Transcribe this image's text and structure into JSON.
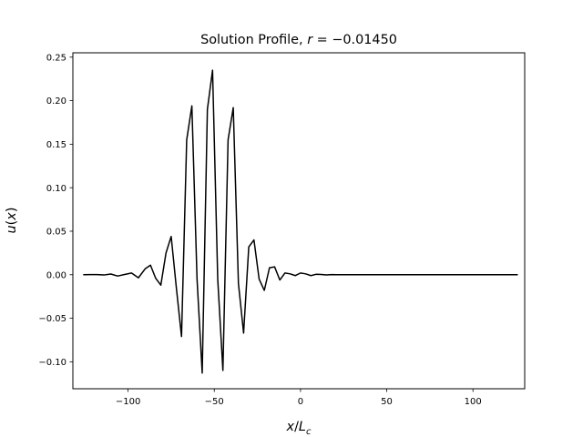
{
  "chart_data": {
    "type": "line",
    "title": "Solution Profile, r = −0.01450",
    "title_parts": {
      "prefix": "Solution Profile, ",
      "var": "r",
      "rest": " = −0.01450"
    },
    "xlabel_parts": {
      "a": "x",
      "b": "/",
      "c": "L",
      "sub": "c"
    },
    "ylabel_parts": {
      "a": "u",
      "b": "(",
      "c": "x",
      "d": ")"
    },
    "xlim": [
      -132,
      130
    ],
    "ylim": [
      -0.131,
      0.255
    ],
    "xticks": [
      {
        "value": -100,
        "label": "−100"
      },
      {
        "value": -50,
        "label": "−50"
      },
      {
        "value": 0,
        "label": "0"
      },
      {
        "value": 50,
        "label": "50"
      },
      {
        "value": 100,
        "label": "100"
      }
    ],
    "yticks": [
      {
        "value": -0.1,
        "label": "−0.10"
      },
      {
        "value": -0.05,
        "label": "−0.05"
      },
      {
        "value": 0.0,
        "label": "0.00"
      },
      {
        "value": 0.05,
        "label": "0.05"
      },
      {
        "value": 0.1,
        "label": "0.10"
      },
      {
        "value": 0.15,
        "label": "0.15"
      },
      {
        "value": 0.2,
        "label": "0.20"
      },
      {
        "value": 0.25,
        "label": "0.25"
      }
    ],
    "grid": false,
    "line_color": "#000000",
    "series": [
      {
        "x": [
          -126,
          -122,
          -118,
          -114,
          -110,
          -106,
          -102,
          -98,
          -94,
          -90,
          -87,
          -84,
          -81,
          -78,
          -75,
          -72,
          -69,
          -66,
          -63,
          -60,
          -57,
          -54,
          -51,
          -48,
          -45,
          -42,
          -39,
          -36,
          -33,
          -30,
          -27,
          -24,
          -21,
          -18,
          -15,
          -12,
          -9,
          -6,
          -3,
          0,
          3,
          6,
          9,
          12,
          15,
          18,
          21,
          24,
          27,
          30,
          35,
          40,
          50,
          60,
          70,
          80,
          90,
          100,
          110,
          120,
          126
        ],
        "y": [
          0.0,
          0.0002,
          0.0001,
          -0.0003,
          0.0008,
          -0.0015,
          0.0003,
          0.002,
          -0.0035,
          0.007,
          0.011,
          -0.004,
          -0.012,
          0.025,
          0.044,
          -0.015,
          -0.071,
          0.155,
          0.194,
          -0.005,
          -0.113,
          0.19,
          0.235,
          -0.005,
          -0.11,
          0.155,
          0.192,
          -0.01,
          -0.067,
          0.032,
          0.04,
          -0.005,
          -0.018,
          0.008,
          0.009,
          -0.006,
          0.002,
          0.001,
          -0.001,
          0.002,
          0.001,
          -0.001,
          0.0005,
          0.0003,
          -0.0002,
          0.0001,
          0.0,
          0.0,
          0.0,
          0.0,
          0.0,
          0.0,
          0.0,
          0.0,
          0.0,
          0.0,
          0.0,
          0.0,
          0.0,
          0.0,
          0.0
        ]
      }
    ]
  }
}
